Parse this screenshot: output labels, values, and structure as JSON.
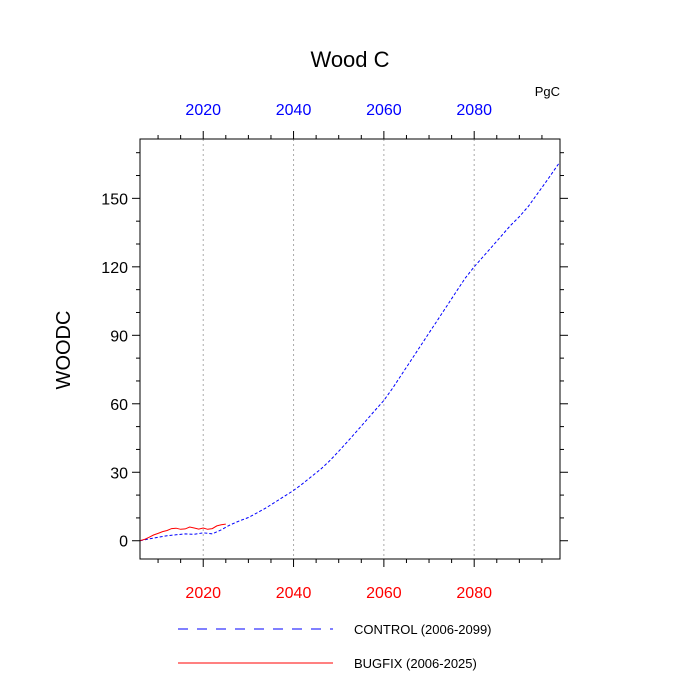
{
  "chart_data": {
    "type": "line",
    "title": "Wood C",
    "units_label": "PgC",
    "ylabel": "WOODC",
    "xlabel": "",
    "xlim": [
      2006,
      2099
    ],
    "ylim": [
      -8,
      176
    ],
    "y_ticks": [
      0,
      30,
      60,
      90,
      120,
      150
    ],
    "y_minor_step": 10,
    "x_ticks": [
      2020,
      2040,
      2060,
      2080
    ],
    "x_minor_step": 5,
    "top_tick_color": "#0000ff",
    "bottom_tick_color": "#ff0000",
    "grid": "vertical dotted at major x ticks",
    "legend_position": "bottom",
    "series": [
      {
        "name": "CONTROL (2006-2099)",
        "color": "#0000ff",
        "style": "dashed",
        "x": [
          2006,
          2008,
          2010,
          2012,
          2014,
          2016,
          2018,
          2020,
          2022,
          2024,
          2026,
          2028,
          2030,
          2032,
          2034,
          2036,
          2038,
          2040,
          2042,
          2044,
          2046,
          2048,
          2050,
          2052,
          2054,
          2056,
          2058,
          2060,
          2062,
          2064,
          2066,
          2068,
          2070,
          2072,
          2074,
          2076,
          2078,
          2080,
          2082,
          2084,
          2086,
          2088,
          2090,
          2092,
          2094,
          2096,
          2099
        ],
        "values": [
          0,
          0.8,
          1.5,
          2.2,
          2.6,
          3.0,
          2.8,
          3.5,
          3.0,
          4.8,
          7.0,
          8.7,
          10.2,
          12.3,
          14.5,
          17.0,
          19.5,
          22.0,
          25.0,
          28.2,
          31.3,
          35.0,
          39.2,
          43.5,
          48.0,
          52.5,
          57.0,
          61.5,
          67.0,
          73.0,
          79.0,
          85.0,
          91.0,
          97.0,
          103.0,
          109.0,
          115.0,
          120.0,
          124.5,
          129.0,
          133.5,
          138.0,
          142.0,
          146.5,
          152.0,
          157.5,
          166.0
        ]
      },
      {
        "name": "BUGFIX (2006-2025)",
        "color": "#ff0000",
        "style": "solid",
        "x": [
          2006,
          2007,
          2008,
          2009,
          2010,
          2011,
          2012,
          2013,
          2014,
          2015,
          2016,
          2017,
          2018,
          2019,
          2020,
          2021,
          2022,
          2023,
          2024,
          2025
        ],
        "values": [
          0,
          0.6,
          1.5,
          2.5,
          3.2,
          4.0,
          4.5,
          5.3,
          5.5,
          5.0,
          5.2,
          6.0,
          5.6,
          5.1,
          5.6,
          5.0,
          5.3,
          6.5,
          7.0,
          7.3
        ]
      }
    ]
  }
}
